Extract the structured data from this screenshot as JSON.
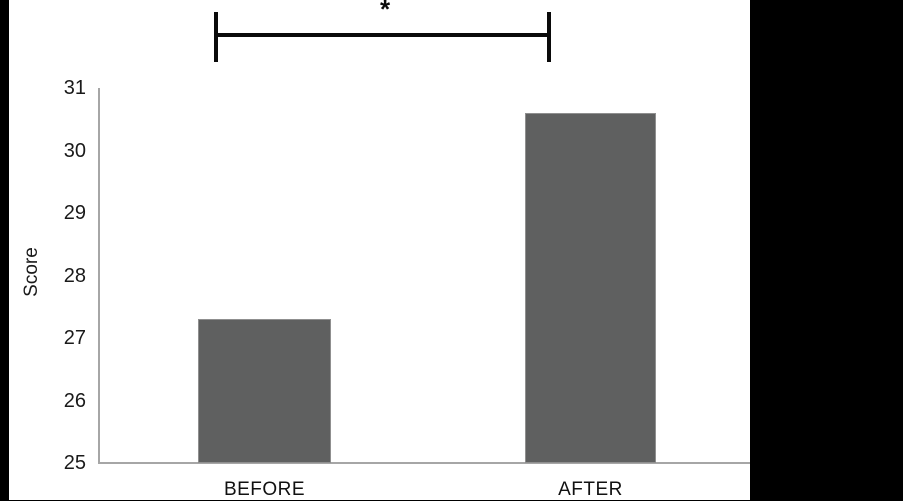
{
  "chart_data": {
    "type": "bar",
    "title": "",
    "xlabel": "",
    "ylabel": "Score",
    "categories": [
      "BEFORE",
      "AFTER"
    ],
    "values": [
      27.3,
      30.6
    ],
    "ylim": [
      25,
      31
    ],
    "yticks": [
      25,
      26,
      27,
      28,
      29,
      30,
      31
    ],
    "grid": false,
    "legend": false,
    "bar_color": "#5f6060",
    "bar_border_color": "#8f8f8f",
    "axis_color": "#a6a6a6",
    "significance": {
      "label": "*",
      "connects": [
        "BEFORE",
        "AFTER"
      ]
    }
  },
  "colors": {
    "page_background": "#000000",
    "plot_background": "#ffffff",
    "text": "#1a1a1a"
  }
}
